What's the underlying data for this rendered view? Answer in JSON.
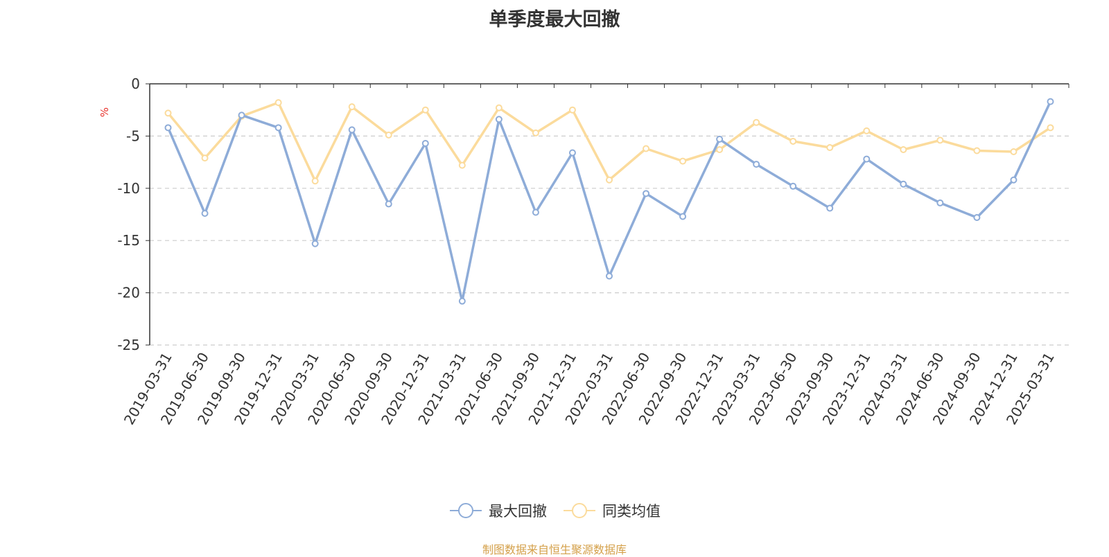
{
  "chart_data": {
    "type": "line",
    "title": "单季度最大回撤",
    "ylabel": "%",
    "ylim": [
      -25,
      0
    ],
    "yticks": [
      0,
      -5,
      -10,
      -15,
      -20,
      -25
    ],
    "grid": true,
    "legend_position": "bottom",
    "categories": [
      "2019-03-31",
      "2019-06-30",
      "2019-09-30",
      "2019-12-31",
      "2020-03-31",
      "2020-06-30",
      "2020-09-30",
      "2020-12-31",
      "2021-03-31",
      "2021-06-30",
      "2021-09-30",
      "2021-12-31",
      "2022-03-31",
      "2022-06-30",
      "2022-09-30",
      "2022-12-31",
      "2023-03-31",
      "2023-06-30",
      "2023-09-30",
      "2023-12-31",
      "2024-03-31",
      "2024-06-30",
      "2024-09-30",
      "2024-12-31",
      "2025-03-31"
    ],
    "series": [
      {
        "name": "最大回撤",
        "color": "#8eacd8",
        "values": [
          -4.2,
          -12.4,
          -3.0,
          -4.2,
          -15.3,
          -4.4,
          -11.5,
          -5.7,
          -20.8,
          -3.4,
          -12.3,
          -6.6,
          -18.4,
          -10.5,
          -12.7,
          -5.3,
          -7.7,
          -9.8,
          -11.9,
          -7.2,
          -9.6,
          -11.4,
          -12.8,
          -9.2,
          -1.7
        ]
      },
      {
        "name": "同类均值",
        "color": "#fbdb9c",
        "values": [
          -2.8,
          -7.1,
          -3.1,
          -1.8,
          -9.3,
          -2.2,
          -4.9,
          -2.5,
          -7.8,
          -2.3,
          -4.7,
          -2.5,
          -9.2,
          -6.2,
          -7.4,
          -6.3,
          -3.7,
          -5.5,
          -6.1,
          -4.5,
          -6.3,
          -5.4,
          -6.4,
          -6.5,
          -4.2
        ]
      }
    ]
  },
  "source_note": "制图数据来自恒生聚源数据库",
  "colors": {
    "axis": "#333333",
    "grid": "#cccccc",
    "ylabel": "#e8322b",
    "source": "#d4a04a"
  }
}
